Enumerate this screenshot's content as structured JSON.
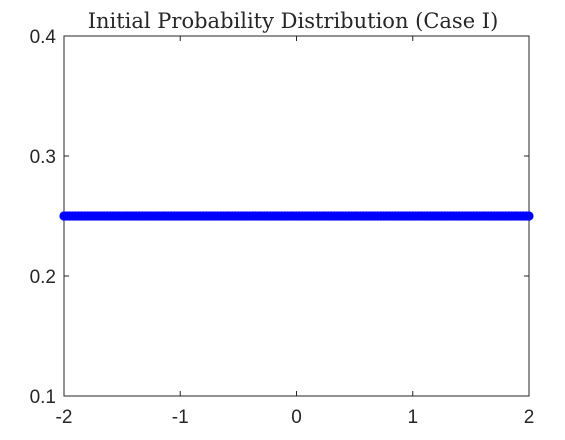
{
  "chart_data": {
    "type": "scatter",
    "title": "Initial Probability Distribution (Case I)",
    "xlabel": "",
    "ylabel": "",
    "xlim": [
      -2,
      2
    ],
    "ylim": [
      0.1,
      0.4
    ],
    "xticks": [
      "-2",
      "-1",
      "0",
      "1",
      "2"
    ],
    "yticks": [
      "0.1",
      "0.2",
      "0.3",
      "0.4"
    ],
    "grid": false,
    "series": [
      {
        "x_range": [
          -2,
          2
        ],
        "point_count": 161,
        "y": 0.25,
        "marker": "filled-circle",
        "color": "#0000ff"
      }
    ]
  }
}
